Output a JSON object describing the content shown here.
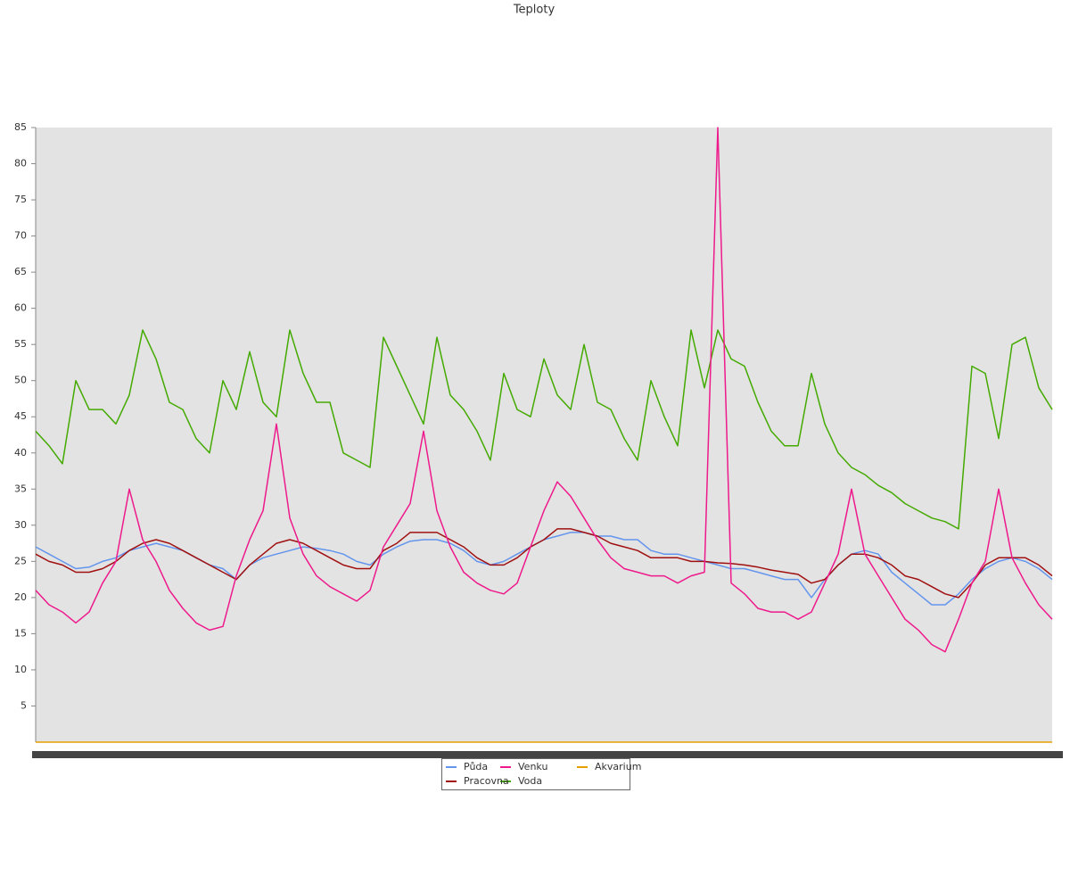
{
  "chart_data": {
    "type": "line",
    "title": "Teploty",
    "categories": [
      null,
      null,
      null,
      null,
      null,
      null,
      null,
      null,
      null,
      null,
      null,
      null,
      null,
      null,
      null,
      null,
      null,
      null,
      null,
      null,
      null,
      null,
      null,
      null,
      null,
      null,
      null,
      null,
      null,
      null,
      null,
      null,
      null,
      null,
      null,
      null,
      null,
      null,
      null,
      null,
      null,
      null,
      null,
      null,
      null,
      null,
      null,
      null,
      null,
      null,
      null,
      null,
      null,
      null,
      null,
      null,
      null,
      null,
      null,
      null,
      null,
      null,
      null,
      null,
      null,
      null,
      null,
      null,
      null,
      null,
      null,
      null,
      null,
      null,
      null,
      null,
      null
    ],
    "ylim": [
      0,
      85
    ],
    "yticks": [
      5,
      10,
      15,
      20,
      25,
      30,
      35,
      40,
      45,
      50,
      55,
      60,
      65,
      70,
      75,
      80,
      85
    ],
    "legend": "bottom",
    "series": [
      {
        "name": "Půda",
        "color": "#6495ed",
        "values": [
          27,
          26,
          25,
          24,
          24.2,
          25,
          25.5,
          26.5,
          27,
          27.5,
          27,
          26.5,
          25.5,
          24.5,
          24,
          22.5,
          24.5,
          25.5,
          26,
          26.5,
          27,
          26.8,
          26.5,
          26,
          25,
          24.5,
          26,
          27,
          27.8,
          28,
          28,
          27.5,
          26.5,
          25,
          24.5,
          25,
          26,
          27,
          28,
          28.5,
          29,
          29,
          28.5,
          28.5,
          28,
          28,
          26.5,
          26,
          26,
          25.5,
          25,
          24.5,
          24,
          24,
          23.5,
          23,
          22.5,
          22.5,
          20,
          22.5,
          24.5,
          26,
          26.5,
          26,
          23.5,
          22,
          20.5,
          19,
          19,
          20.5,
          22.5,
          24,
          25,
          25.5,
          25,
          24,
          22.5
        ]
      },
      {
        "name": "Voda",
        "color": "#44aa00",
        "values": [
          43,
          41,
          38.5,
          50,
          46,
          46,
          44,
          48,
          57,
          53,
          47,
          46,
          42,
          40,
          50,
          46,
          54,
          47,
          45,
          57,
          51,
          47,
          47,
          40,
          39,
          38,
          56,
          52,
          48,
          44,
          56,
          48,
          46,
          43,
          39,
          51,
          46,
          45,
          53,
          48,
          46,
          55,
          47,
          46,
          42,
          39,
          50,
          45,
          41,
          57,
          49,
          57,
          53,
          52,
          47,
          43,
          41,
          41,
          51,
          44,
          40,
          38,
          37,
          35.5,
          34.5,
          33,
          32,
          31,
          30.5,
          29.5,
          52,
          51,
          42,
          55,
          56,
          49,
          46
        ]
      },
      {
        "name": "Pracovna",
        "color": "#a01010",
        "values": [
          26,
          25,
          24.5,
          23.5,
          23.5,
          24,
          25,
          26.5,
          27.5,
          28,
          27.5,
          26.5,
          25.5,
          24.5,
          23.5,
          22.5,
          24.5,
          26,
          27.5,
          28,
          27.5,
          26.5,
          25.5,
          24.5,
          24,
          24,
          26.5,
          27.5,
          29,
          29,
          29,
          28,
          27,
          25.5,
          24.5,
          24.5,
          25.5,
          27,
          28,
          29.5,
          29.5,
          29,
          28.5,
          27.5,
          27,
          26.5,
          25.5,
          25.5,
          25.5,
          25,
          25,
          24.8,
          24.7,
          24.5,
          24.2,
          23.8,
          23.5,
          23.2,
          22,
          22.5,
          24.5,
          26,
          26,
          25.5,
          24.5,
          23,
          22.5,
          21.5,
          20.5,
          20,
          22,
          24.5,
          25.5,
          25.5,
          25.5,
          24.5,
          23
        ]
      },
      {
        "name": "Akvarium",
        "color": "#e8a000",
        "values": [
          0,
          0,
          0,
          0,
          0,
          0,
          0,
          0,
          0,
          0,
          0,
          0,
          0,
          0,
          0,
          0,
          0,
          0,
          0,
          0,
          0,
          0,
          0,
          0,
          0,
          0,
          0,
          0,
          0,
          0,
          0,
          0,
          0,
          0,
          0,
          0,
          0,
          0,
          0,
          0,
          0,
          0,
          0,
          0,
          0,
          0,
          0,
          0,
          0,
          0,
          0,
          0,
          0,
          0,
          0,
          0,
          0,
          0,
          0,
          0,
          0,
          0,
          0,
          0,
          0,
          0,
          0,
          0,
          0,
          0,
          0,
          0,
          0,
          0,
          0,
          0,
          0
        ]
      },
      {
        "name": "Venku",
        "color": "#ee1a8c",
        "values": [
          21,
          19,
          18,
          16.5,
          18,
          22,
          25,
          35,
          28,
          25,
          21,
          18.5,
          16.5,
          15.5,
          16,
          23,
          28,
          32,
          44,
          31,
          26,
          23,
          21.5,
          20.5,
          19.5,
          21,
          27,
          30,
          33,
          43,
          32,
          27,
          23.5,
          22,
          21,
          20.5,
          22,
          27,
          32,
          36,
          34,
          31,
          28,
          25.5,
          24,
          23.5,
          23,
          23,
          22,
          23,
          23.5,
          85,
          22,
          20.5,
          18.5,
          18,
          18,
          17,
          18,
          22,
          26,
          35,
          26,
          23,
          20,
          17,
          15.5,
          13.5,
          12.5,
          17,
          22,
          25,
          35,
          25.5,
          22,
          19,
          17
        ]
      }
    ]
  }
}
